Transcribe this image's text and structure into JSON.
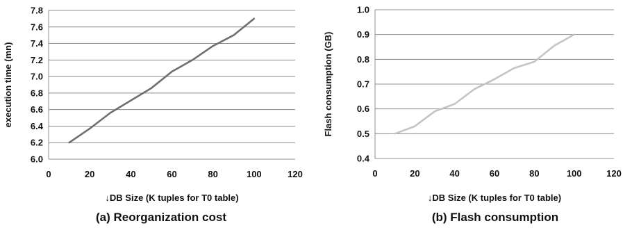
{
  "chart_data": [
    {
      "type": "line",
      "ylabel": "execution time (mn)",
      "xlabel": "↓DB Size (K tuples for T0 table)",
      "caption": "(a) Reorganization cost",
      "xlim": [
        0,
        120
      ],
      "ylim": [
        6.0,
        7.8
      ],
      "x_ticks": [
        "0",
        "20",
        "40",
        "60",
        "80",
        "100",
        "120"
      ],
      "y_ticks": [
        "6.0",
        "6.2",
        "6.4",
        "6.6",
        "6.8",
        "7.0",
        "7.2",
        "7.4",
        "7.6",
        "7.8"
      ],
      "grid": true,
      "series": [
        {
          "color": "#6e6e6e",
          "x": [
            10,
            20,
            30,
            40,
            50,
            60,
            70,
            80,
            90,
            100
          ],
          "y": [
            6.2,
            6.37,
            6.56,
            6.71,
            6.86,
            7.06,
            7.2,
            7.37,
            7.5,
            7.7
          ]
        }
      ]
    },
    {
      "type": "line",
      "ylabel": "Flash consumption (GB)",
      "xlabel": "↓DB Size (K tuples for T0 table)",
      "caption": "(b) Flash consumption",
      "xlim": [
        0,
        120
      ],
      "ylim": [
        0.4,
        1.0
      ],
      "x_ticks": [
        "0",
        "20",
        "40",
        "60",
        "80",
        "100",
        "120"
      ],
      "y_ticks": [
        "0.4",
        "0.5",
        "0.6",
        "0.7",
        "0.8",
        "0.9",
        "1.0"
      ],
      "grid": true,
      "series": [
        {
          "color": "#c4c4c4",
          "x": [
            10,
            20,
            30,
            40,
            50,
            60,
            70,
            80,
            90,
            100
          ],
          "y": [
            0.5,
            0.53,
            0.59,
            0.62,
            0.68,
            0.72,
            0.765,
            0.79,
            0.855,
            0.9
          ]
        }
      ]
    }
  ]
}
